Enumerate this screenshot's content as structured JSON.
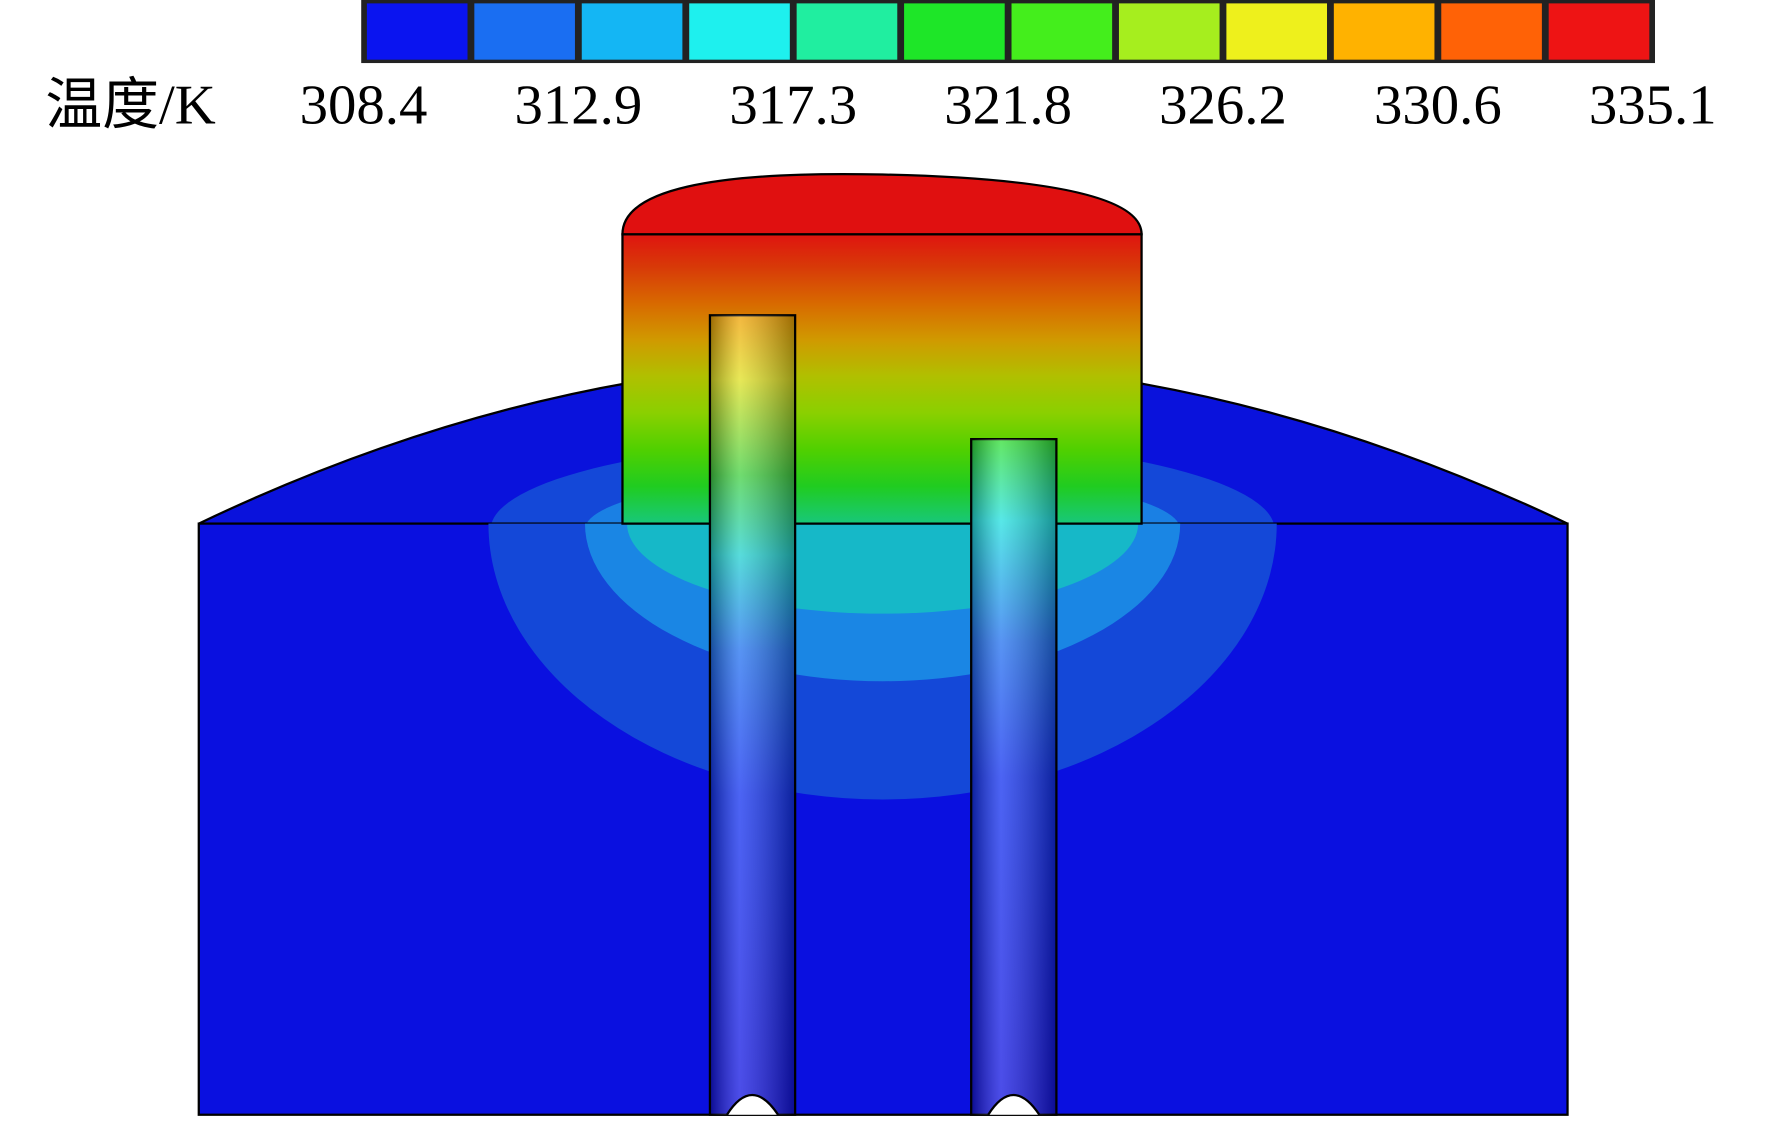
{
  "colorbar": {
    "label": "温度/K",
    "ticks": [
      308.4,
      312.9,
      317.3,
      321.8,
      326.2,
      330.6,
      335.1
    ],
    "colors": [
      "#0a14f0",
      "#1a6ef2",
      "#14b6f4",
      "#1ef0ee",
      "#20eea0",
      "#1ee628",
      "#44ee1c",
      "#a6ee1e",
      "#eef01c",
      "#ffb200",
      "#ff6206",
      "#ee1414"
    ]
  }
}
